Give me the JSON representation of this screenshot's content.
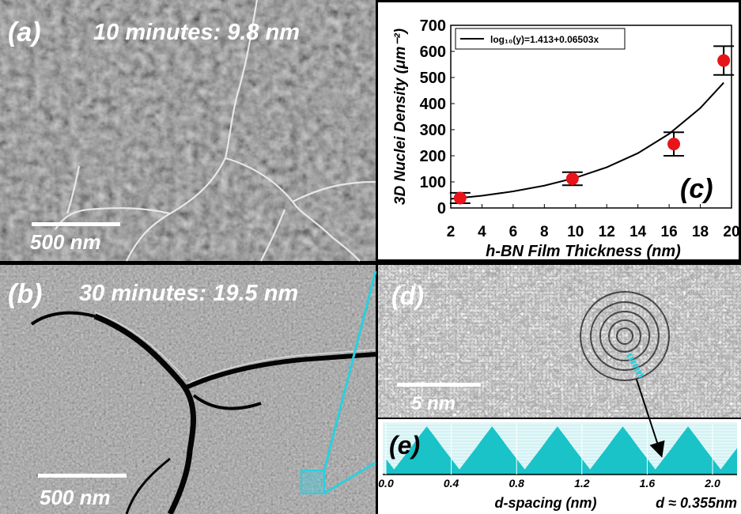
{
  "panels": {
    "a": {
      "label": "(a)",
      "caption": "10 minutes: 9.8 nm",
      "scale_bar": "500 nm"
    },
    "b": {
      "label": "(b)",
      "caption": "30 minutes: 19.5 nm",
      "scale_bar": "500 nm"
    },
    "d": {
      "label": "(d)",
      "scale_bar": "5 nm"
    }
  },
  "chart_data": [
    {
      "type": "scatter",
      "annotation": "(c)",
      "xlabel": "h-BN Film Thickness (nm)",
      "ylabel": "3D Nuclei Density (μm⁻²)",
      "xlim": [
        2,
        20
      ],
      "xticks": [
        2,
        4,
        6,
        8,
        10,
        12,
        14,
        16,
        18,
        20
      ],
      "ylim": [
        0,
        700
      ],
      "yticks": [
        0,
        100,
        200,
        300,
        400,
        500,
        600,
        700
      ],
      "legend": "upper left",
      "series": [
        {
          "name": "log₁₀(y)=1.413+0.06503x",
          "type": "line",
          "color": "#000000",
          "x": [
            2,
            4,
            6,
            8,
            10,
            12,
            14,
            16,
            18,
            19.5
          ],
          "values": [
            34.9,
            47.1,
            63.5,
            85.7,
            115.6,
            156,
            210,
            284,
            383,
            480
          ]
        },
        {
          "type": "scatter",
          "color": "#e8141a",
          "x": [
            2.6,
            9.8,
            16.3,
            19.5
          ],
          "values": [
            38,
            112,
            245,
            565
          ],
          "errors": [
            20,
            25,
            45,
            55
          ]
        }
      ]
    },
    {
      "type": "area",
      "annotation": "(e)",
      "color": "#19c3c8",
      "xlabel": "d-spacing (nm)",
      "note": "d ≈ 0.355nm",
      "xlim": [
        0,
        2.15
      ],
      "ylim": [
        0,
        100
      ],
      "xticks": [
        {
          "value": 0,
          "label": "0.0"
        },
        {
          "value": 0.4,
          "label": "0.4"
        },
        {
          "value": 0.8,
          "label": "0.8"
        },
        {
          "value": 1.2,
          "label": "1.2"
        },
        {
          "value": 1.6,
          "label": "1.6"
        },
        {
          "value": 2,
          "label": "2.0"
        }
      ],
      "x": [
        0,
        0.05,
        0.1,
        0.15,
        0.2,
        0.25,
        0.3,
        0.35,
        0.4,
        0.45,
        0.5,
        0.55,
        0.6,
        0.65,
        0.7,
        0.75,
        0.8,
        0.85,
        0.9,
        0.95,
        1,
        1.05,
        1.1,
        1.15,
        1.2,
        1.25,
        1.3,
        1.35,
        1.4,
        1.45,
        1.5,
        1.55,
        1.6,
        1.65,
        1.7,
        1.75,
        1.8,
        1.85,
        1.9,
        1.95,
        2,
        2.05,
        2.1,
        2.15
      ],
      "values": [
        31,
        10,
        31,
        52,
        74,
        95,
        74,
        52,
        31,
        10,
        31,
        52,
        74,
        95,
        74,
        52,
        31,
        10,
        31,
        52,
        74,
        95,
        74,
        52,
        31,
        10,
        31,
        52,
        74,
        95,
        74,
        52,
        31,
        10,
        31,
        52,
        74,
        95,
        74,
        52,
        31,
        10,
        31,
        52
      ]
    }
  ]
}
